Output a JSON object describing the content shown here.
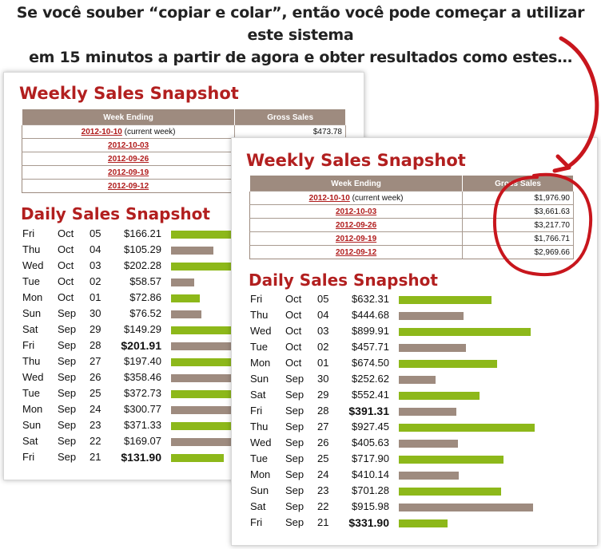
{
  "headline": {
    "line1": "Se você souber “copiar e colar”, então você pode começar a utilizar este sistema",
    "line2": "em 15 minutos a partir de agora e obter resultados como estes…"
  },
  "colors": {
    "title": "#b21f1f",
    "green_bar": "#8db81a",
    "brown_bar": "#9e8b7f",
    "highlight_circle": "#c8161d"
  },
  "back_card": {
    "weekly_title": "Weekly Sales Snapshot",
    "daily_title": "Daily Sales Snapshot",
    "weekly_headers": [
      "Week Ending",
      "Gross Sales"
    ],
    "weekly_rows": [
      {
        "date": "2012-10-10",
        "note": "(current week)",
        "amount": "$473.78"
      },
      {
        "date": "2012-10-03",
        "note": "",
        "amount": ""
      },
      {
        "date": "2012-09-26",
        "note": "",
        "amount": ""
      },
      {
        "date": "2012-09-19",
        "note": "",
        "amount": ""
      },
      {
        "date": "2012-09-12",
        "note": "",
        "amount": ""
      }
    ],
    "daily_rows": [
      {
        "day": "Fri",
        "month": "Oct",
        "date": "05",
        "amount": "$166.21",
        "value": 166.21,
        "color": "green",
        "peak": false
      },
      {
        "day": "Thu",
        "month": "Oct",
        "date": "04",
        "amount": "$105.29",
        "value": 105.29,
        "color": "brown",
        "peak": false
      },
      {
        "day": "Wed",
        "month": "Oct",
        "date": "03",
        "amount": "$202.28",
        "value": 202.28,
        "color": "green",
        "peak": false
      },
      {
        "day": "Tue",
        "month": "Oct",
        "date": "02",
        "amount": "$58.57",
        "value": 58.57,
        "color": "brown",
        "peak": false
      },
      {
        "day": "Mon",
        "month": "Oct",
        "date": "01",
        "amount": "$72.86",
        "value": 72.86,
        "color": "green",
        "peak": false
      },
      {
        "day": "Sun",
        "month": "Sep",
        "date": "30",
        "amount": "$76.52",
        "value": 76.52,
        "color": "brown",
        "peak": false
      },
      {
        "day": "Sat",
        "month": "Sep",
        "date": "29",
        "amount": "$149.29",
        "value": 149.29,
        "color": "green",
        "peak": false
      },
      {
        "day": "Fri",
        "month": "Sep",
        "date": "28",
        "amount": "$201.91",
        "value": 201.91,
        "color": "brown",
        "peak": true
      },
      {
        "day": "Thu",
        "month": "Sep",
        "date": "27",
        "amount": "$197.40",
        "value": 197.4,
        "color": "green",
        "peak": false
      },
      {
        "day": "Wed",
        "month": "Sep",
        "date": "26",
        "amount": "$358.46",
        "value": 358.46,
        "color": "brown",
        "peak": false
      },
      {
        "day": "Tue",
        "month": "Sep",
        "date": "25",
        "amount": "$372.73",
        "value": 372.73,
        "color": "green",
        "peak": false
      },
      {
        "day": "Mon",
        "month": "Sep",
        "date": "24",
        "amount": "$300.77",
        "value": 300.77,
        "color": "brown",
        "peak": false
      },
      {
        "day": "Sun",
        "month": "Sep",
        "date": "23",
        "amount": "$371.33",
        "value": 371.33,
        "color": "green",
        "peak": false
      },
      {
        "day": "Sat",
        "month": "Sep",
        "date": "22",
        "amount": "$169.07",
        "value": 169.07,
        "color": "brown",
        "peak": false
      },
      {
        "day": "Fri",
        "month": "Sep",
        "date": "21",
        "amount": "$131.90",
        "value": 131.9,
        "color": "green",
        "peak": true
      }
    ]
  },
  "front_card": {
    "weekly_title": "Weekly Sales Snapshot",
    "daily_title": "Daily Sales Snapshot",
    "weekly_headers": [
      "Week Ending",
      "Gross Sales"
    ],
    "weekly_rows": [
      {
        "date": "2012-10-10",
        "note": "(current week)",
        "amount": "$1,976.90"
      },
      {
        "date": "2012-10-03",
        "note": "",
        "amount": "$3,661.63"
      },
      {
        "date": "2012-09-26",
        "note": "",
        "amount": "$3,217.70"
      },
      {
        "date": "2012-09-19",
        "note": "",
        "amount": "$1,766.71"
      },
      {
        "date": "2012-09-12",
        "note": "",
        "amount": "$2,969.66"
      }
    ],
    "daily_rows": [
      {
        "day": "Fri",
        "month": "Oct",
        "date": "05",
        "amount": "$632.31",
        "value": 632.31,
        "color": "green",
        "peak": false
      },
      {
        "day": "Thu",
        "month": "Oct",
        "date": "04",
        "amount": "$444.68",
        "value": 444.68,
        "color": "brown",
        "peak": false
      },
      {
        "day": "Wed",
        "month": "Oct",
        "date": "03",
        "amount": "$899.91",
        "value": 899.91,
        "color": "green",
        "peak": false
      },
      {
        "day": "Tue",
        "month": "Oct",
        "date": "02",
        "amount": "$457.71",
        "value": 457.71,
        "color": "brown",
        "peak": false
      },
      {
        "day": "Mon",
        "month": "Oct",
        "date": "01",
        "amount": "$674.50",
        "value": 674.5,
        "color": "green",
        "peak": false
      },
      {
        "day": "Sun",
        "month": "Sep",
        "date": "30",
        "amount": "$252.62",
        "value": 252.62,
        "color": "brown",
        "peak": false
      },
      {
        "day": "Sat",
        "month": "Sep",
        "date": "29",
        "amount": "$552.41",
        "value": 552.41,
        "color": "green",
        "peak": false
      },
      {
        "day": "Fri",
        "month": "Sep",
        "date": "28",
        "amount": "$391.31",
        "value": 391.31,
        "color": "brown",
        "peak": true
      },
      {
        "day": "Thu",
        "month": "Sep",
        "date": "27",
        "amount": "$927.45",
        "value": 927.45,
        "color": "green",
        "peak": false
      },
      {
        "day": "Wed",
        "month": "Sep",
        "date": "26",
        "amount": "$405.63",
        "value": 405.63,
        "color": "brown",
        "peak": false
      },
      {
        "day": "Tue",
        "month": "Sep",
        "date": "25",
        "amount": "$717.90",
        "value": 717.9,
        "color": "green",
        "peak": false
      },
      {
        "day": "Mon",
        "month": "Sep",
        "date": "24",
        "amount": "$410.14",
        "value": 410.14,
        "color": "brown",
        "peak": false
      },
      {
        "day": "Sun",
        "month": "Sep",
        "date": "23",
        "amount": "$701.28",
        "value": 701.28,
        "color": "green",
        "peak": false
      },
      {
        "day": "Sat",
        "month": "Sep",
        "date": "22",
        "amount": "$915.98",
        "value": 915.98,
        "color": "brown",
        "peak": false
      },
      {
        "day": "Fri",
        "month": "Sep",
        "date": "21",
        "amount": "$331.90",
        "value": 331.9,
        "color": "green",
        "peak": true
      }
    ]
  },
  "icons": {
    "arrow": "curved-arrow-icon",
    "circle": "highlight-circle-icon"
  }
}
